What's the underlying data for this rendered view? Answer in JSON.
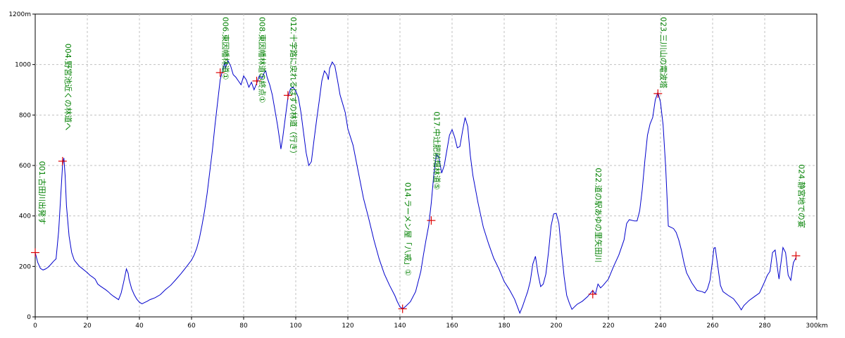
{
  "chart_data": {
    "type": "line",
    "title": "",
    "xlabel": "",
    "ylabel": "",
    "x_unit": "km",
    "y_unit": "m",
    "xlim": [
      0,
      300
    ],
    "ylim": [
      0,
      1200
    ],
    "grid": true,
    "colors": {
      "line": "#0000cc",
      "marker": "#dd0000",
      "label": "#008000",
      "grid": "#c0c0c0"
    },
    "x_ticks": [
      "0",
      "20",
      "40",
      "60",
      "80",
      "100",
      "120",
      "140",
      "160",
      "180",
      "200",
      "220",
      "240",
      "260",
      "280",
      "300km"
    ],
    "y_ticks": [
      "0",
      "200",
      "400",
      "600",
      "800",
      "1000",
      "1200m"
    ],
    "series": [
      {
        "points": [
          [
            0,
            255
          ],
          [
            1,
            215
          ],
          [
            2,
            192
          ],
          [
            3,
            186
          ],
          [
            4,
            190
          ],
          [
            5,
            197
          ],
          [
            6,
            208
          ],
          [
            7,
            220
          ],
          [
            8,
            230
          ],
          [
            9,
            340
          ],
          [
            10,
            515
          ],
          [
            10.5,
            600
          ],
          [
            11,
            630
          ],
          [
            11.5,
            560
          ],
          [
            12,
            440
          ],
          [
            13,
            320
          ],
          [
            14,
            255
          ],
          [
            15,
            225
          ],
          [
            16,
            212
          ],
          [
            17,
            200
          ],
          [
            18,
            192
          ],
          [
            20,
            175
          ],
          [
            21,
            165
          ],
          [
            22,
            158
          ],
          [
            23,
            150
          ],
          [
            24,
            130
          ],
          [
            25,
            122
          ],
          [
            26,
            115
          ],
          [
            27,
            108
          ],
          [
            28,
            100
          ],
          [
            29,
            90
          ],
          [
            30,
            82
          ],
          [
            31,
            75
          ],
          [
            32,
            68
          ],
          [
            33,
            95
          ],
          [
            34,
            140
          ],
          [
            35,
            190
          ],
          [
            35.7,
            172
          ],
          [
            36,
            150
          ],
          [
            37,
            112
          ],
          [
            38,
            88
          ],
          [
            39,
            70
          ],
          [
            40,
            58
          ],
          [
            41,
            52
          ],
          [
            42,
            57
          ],
          [
            43,
            62
          ],
          [
            44,
            68
          ],
          [
            46,
            76
          ],
          [
            48,
            88
          ],
          [
            50,
            108
          ],
          [
            52,
            125
          ],
          [
            54,
            148
          ],
          [
            56,
            172
          ],
          [
            58,
            198
          ],
          [
            60,
            225
          ],
          [
            61,
            245
          ],
          [
            62,
            272
          ],
          [
            63,
            310
          ],
          [
            64,
            362
          ],
          [
            65,
            420
          ],
          [
            66,
            490
          ],
          [
            67,
            575
          ],
          [
            68,
            660
          ],
          [
            69,
            760
          ],
          [
            70,
            850
          ],
          [
            71,
            940
          ],
          [
            72,
            980
          ],
          [
            72.8,
            1010
          ],
          [
            73,
            985
          ],
          [
            74,
            1015
          ],
          [
            75,
            995
          ],
          [
            76,
            960
          ],
          [
            77,
            950
          ],
          [
            78,
            935
          ],
          [
            79,
            920
          ],
          [
            80,
            955
          ],
          [
            81,
            940
          ],
          [
            82,
            910
          ],
          [
            83,
            930
          ],
          [
            84,
            900
          ],
          [
            85,
            925
          ],
          [
            86,
            955
          ],
          [
            87,
            945
          ],
          [
            88,
            970
          ],
          [
            88.5,
            975
          ],
          [
            89,
            950
          ],
          [
            90,
            920
          ],
          [
            91,
            880
          ],
          [
            92,
            820
          ],
          [
            93,
            760
          ],
          [
            94,
            690
          ],
          [
            94.3,
            665
          ],
          [
            95,
            710
          ],
          [
            96,
            790
          ],
          [
            97,
            870
          ],
          [
            98,
            905
          ],
          [
            99,
            910
          ],
          [
            100,
            895
          ],
          [
            101,
            870
          ],
          [
            102,
            810
          ],
          [
            103,
            730
          ],
          [
            104,
            650
          ],
          [
            105,
            600
          ],
          [
            106,
            615
          ],
          [
            107,
            700
          ],
          [
            108,
            780
          ],
          [
            109,
            855
          ],
          [
            110,
            935
          ],
          [
            111,
            975
          ],
          [
            112,
            960
          ],
          [
            112.5,
            940
          ],
          [
            113,
            985
          ],
          [
            114,
            1010
          ],
          [
            115,
            995
          ],
          [
            116,
            940
          ],
          [
            117,
            880
          ],
          [
            118,
            845
          ],
          [
            119,
            810
          ],
          [
            120,
            745
          ],
          [
            122,
            680
          ],
          [
            124,
            575
          ],
          [
            126,
            470
          ],
          [
            128,
            390
          ],
          [
            130,
            305
          ],
          [
            132,
            230
          ],
          [
            134,
            170
          ],
          [
            136,
            125
          ],
          [
            138,
            85
          ],
          [
            139,
            60
          ],
          [
            140,
            40
          ],
          [
            141,
            32
          ],
          [
            142,
            40
          ],
          [
            144,
            60
          ],
          [
            146,
            100
          ],
          [
            148,
            180
          ],
          [
            149,
            245
          ],
          [
            150,
            305
          ],
          [
            151,
            360
          ],
          [
            152,
            450
          ],
          [
            153,
            565
          ],
          [
            154,
            645
          ],
          [
            155,
            630
          ],
          [
            156,
            570
          ],
          [
            157,
            600
          ],
          [
            158,
            660
          ],
          [
            159,
            720
          ],
          [
            160,
            742
          ],
          [
            161,
            712
          ],
          [
            162,
            670
          ],
          [
            163,
            675
          ],
          [
            164,
            735
          ],
          [
            165,
            790
          ],
          [
            166,
            755
          ],
          [
            167,
            640
          ],
          [
            168,
            560
          ],
          [
            170,
            450
          ],
          [
            172,
            355
          ],
          [
            174,
            290
          ],
          [
            176,
            232
          ],
          [
            178,
            190
          ],
          [
            180,
            140
          ],
          [
            182,
            108
          ],
          [
            184,
            70
          ],
          [
            186,
            15
          ],
          [
            187,
            40
          ],
          [
            188,
            70
          ],
          [
            189,
            100
          ],
          [
            190,
            140
          ],
          [
            191,
            210
          ],
          [
            192,
            240
          ],
          [
            193,
            170
          ],
          [
            194,
            120
          ],
          [
            195,
            130
          ],
          [
            196,
            170
          ],
          [
            197,
            255
          ],
          [
            198,
            360
          ],
          [
            199,
            408
          ],
          [
            200,
            410
          ],
          [
            201,
            370
          ],
          [
            202,
            260
          ],
          [
            203,
            160
          ],
          [
            204,
            85
          ],
          [
            205,
            55
          ],
          [
            206,
            30
          ],
          [
            207,
            40
          ],
          [
            208,
            50
          ],
          [
            210,
            62
          ],
          [
            212,
            80
          ],
          [
            214,
            105
          ],
          [
            215,
            90
          ],
          [
            216,
            130
          ],
          [
            217,
            115
          ],
          [
            218,
            125
          ],
          [
            220,
            150
          ],
          [
            222,
            200
          ],
          [
            224,
            245
          ],
          [
            226,
            305
          ],
          [
            227,
            370
          ],
          [
            228,
            385
          ],
          [
            230,
            380
          ],
          [
            231,
            380
          ],
          [
            232,
            420
          ],
          [
            233,
            505
          ],
          [
            234,
            620
          ],
          [
            235,
            720
          ],
          [
            236,
            765
          ],
          [
            237,
            790
          ],
          [
            238,
            860
          ],
          [
            239,
            890
          ],
          [
            240,
            850
          ],
          [
            241,
            760
          ],
          [
            242,
            590
          ],
          [
            243,
            360
          ],
          [
            244,
            355
          ],
          [
            245,
            350
          ],
          [
            246,
            335
          ],
          [
            247,
            305
          ],
          [
            248,
            265
          ],
          [
            249,
            215
          ],
          [
            250,
            175
          ],
          [
            252,
            135
          ],
          [
            254,
            105
          ],
          [
            256,
            100
          ],
          [
            257,
            95
          ],
          [
            258,
            110
          ],
          [
            259,
            145
          ],
          [
            260,
            225
          ],
          [
            260.5,
            272
          ],
          [
            261,
            275
          ],
          [
            262,
            200
          ],
          [
            263,
            125
          ],
          [
            264,
            100
          ],
          [
            266,
            85
          ],
          [
            268,
            72
          ],
          [
            270,
            45
          ],
          [
            271,
            28
          ],
          [
            272,
            45
          ],
          [
            274,
            65
          ],
          [
            276,
            80
          ],
          [
            278,
            95
          ],
          [
            280,
            140
          ],
          [
            281,
            165
          ],
          [
            282,
            180
          ],
          [
            283,
            255
          ],
          [
            284,
            265
          ],
          [
            285,
            185
          ],
          [
            285.5,
            150
          ],
          [
            286,
            195
          ],
          [
            287,
            275
          ],
          [
            288,
            255
          ],
          [
            289,
            165
          ],
          [
            290,
            145
          ],
          [
            291,
            215
          ],
          [
            292,
            235
          ]
        ]
      }
    ],
    "waypoints": [
      {
        "x": 0,
        "y": 255,
        "label": "001.古田川出発す"
      },
      {
        "x": 10.5,
        "y": 617,
        "label": "004.野宮池近くの林道へ"
      },
      {
        "x": 71,
        "y": 968,
        "label": "006.東因幡林道①"
      },
      {
        "x": 85,
        "y": 935,
        "label": "008.東因幡林道の終点①"
      },
      {
        "x": 97,
        "y": 878,
        "label": "012.十字路に戻れるはずの林道（行き）"
      },
      {
        "x": 141,
        "y": 32,
        "label": "014.ラーメン屋「八戒」①"
      },
      {
        "x": 152,
        "y": 382,
        "label": "017.中辻肥前畑林道⑤"
      },
      {
        "x": 214,
        "y": 90,
        "label": "022.道の駅あゆの里矢田川"
      },
      {
        "x": 239,
        "y": 885,
        "label": "023.三川山の電波塔"
      },
      {
        "x": 292,
        "y": 242,
        "label": "024.静宮地での宴"
      }
    ]
  }
}
